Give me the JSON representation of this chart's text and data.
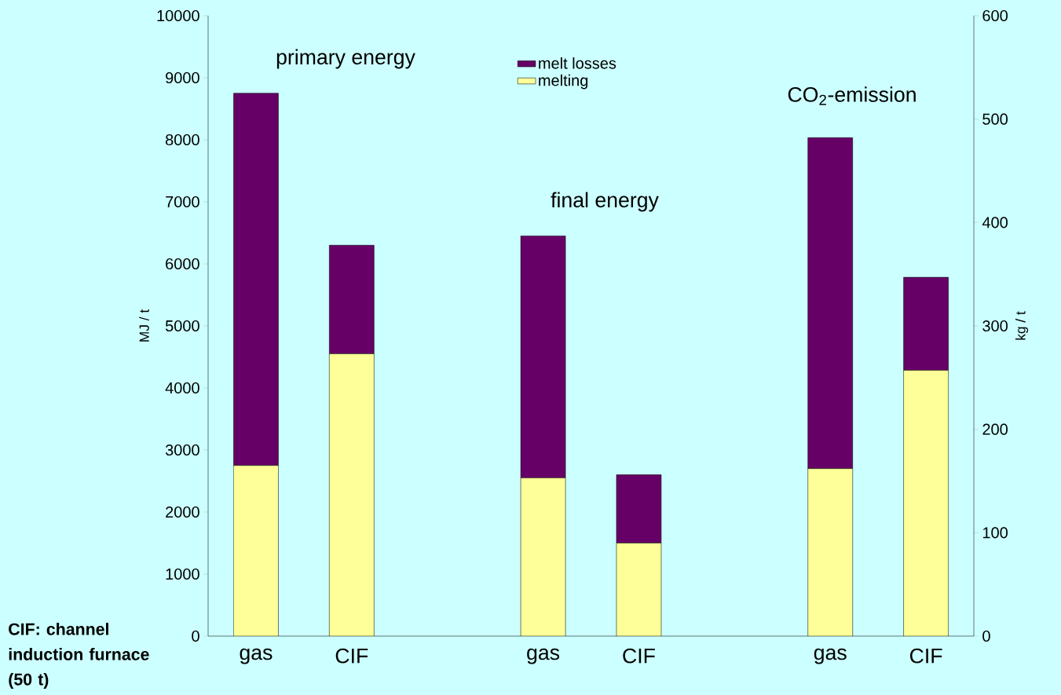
{
  "chart_data": {
    "type": "bar",
    "stacked": true,
    "categories": [
      "gas",
      "CIF",
      null,
      "gas",
      "CIF",
      null,
      "gas",
      "CIF"
    ],
    "ylabel": "MJ / t",
    "y2label": "kg / t",
    "ylim": [
      0,
      10000
    ],
    "yticks": [
      0,
      1000,
      2000,
      3000,
      4000,
      5000,
      6000,
      7000,
      8000,
      9000,
      10000
    ],
    "y2lim": [
      0,
      600
    ],
    "y2ticks": [
      0,
      100,
      200,
      300,
      400,
      500,
      600
    ],
    "legend": "top",
    "grid": false,
    "series": [
      {
        "name": "melting",
        "color": "#ffff99",
        "values": [
          2750,
          4550,
          null,
          2550,
          1500,
          null,
          null,
          null
        ]
      },
      {
        "name": "melt losses",
        "color": "#660066",
        "values": [
          6000,
          1750,
          null,
          3900,
          1100,
          null,
          null,
          null
        ]
      },
      {
        "color": "#ffff99",
        "axis": "y2",
        "values": [
          null,
          null,
          null,
          null,
          null,
          null,
          162,
          257
        ]
      },
      {
        "color": "#660066",
        "axis": "y2",
        "values": [
          null,
          null,
          null,
          null,
          null,
          null,
          320,
          90
        ]
      }
    ],
    "annotations": [
      "primary energy",
      "final energy",
      "CO$_{2}$-emission",
      "CIF: channel induction furnace (50 t)"
    ]
  }
}
